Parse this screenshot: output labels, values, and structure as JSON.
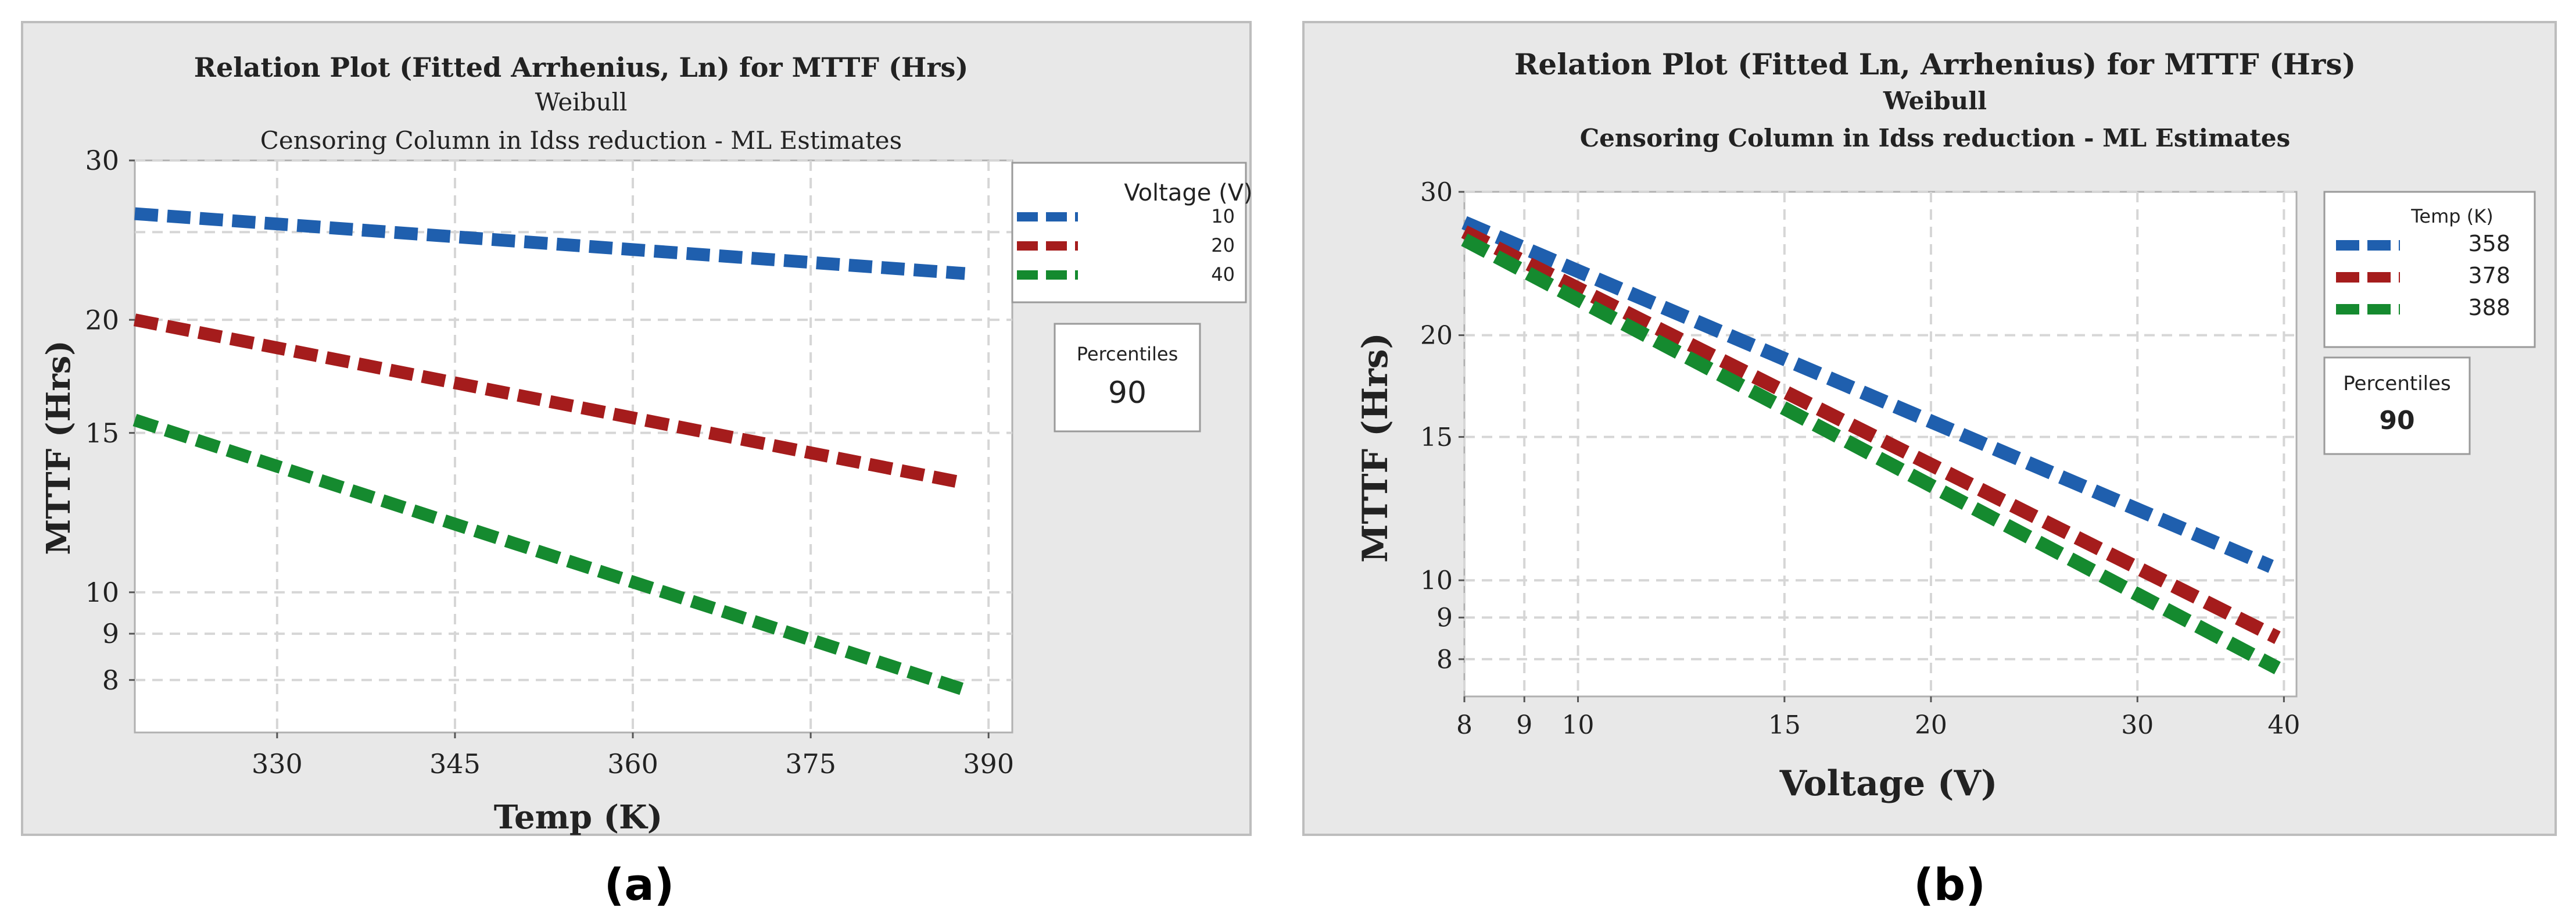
{
  "chart_data": [
    {
      "type": "line",
      "panel_label": "(a)",
      "title": "Relation Plot (Fitted Arrhenius, Ln) for MTTF (Hrs)",
      "subtitle1": "Weibull",
      "subtitle2": "Censoring Column in Idss reduction - ML Estimates",
      "xlabel": "Temp (K)",
      "ylabel": "MTTF (Hrs)",
      "xlim": [
        318,
        392
      ],
      "ylim": [
        7,
        30
      ],
      "yscale": "log",
      "grid": true,
      "xticks": [
        330,
        345,
        360,
        375,
        390
      ],
      "yticks": [
        8,
        9,
        10,
        15,
        20,
        30
      ],
      "legend": {
        "title": "Voltage (V)",
        "placement": "right"
      },
      "percentiles": {
        "label": "Percentiles",
        "value": "90"
      },
      "series": [
        {
          "name": "10",
          "color": "#1f5fae",
          "x": [
            318,
            388
          ],
          "values": [
            26.2,
            22.5
          ]
        },
        {
          "name": "20",
          "color": "#a51c1c",
          "x": [
            318,
            388
          ],
          "values": [
            20.0,
            13.2
          ]
        },
        {
          "name": "40",
          "color": "#158a2f",
          "x": [
            318,
            388
          ],
          "values": [
            15.5,
            7.8
          ]
        }
      ]
    },
    {
      "type": "line",
      "panel_label": "(b)",
      "title": "Relation Plot (Fitted Ln, Arrhenius) for MTTF (Hrs)",
      "subtitle1": "Weibull",
      "subtitle2": "Censoring Column in Idss reduction - ML Estimates",
      "xlabel": "Voltage (V)",
      "ylabel": "MTTF (Hrs)",
      "xlim": [
        8,
        41
      ],
      "ylim": [
        7.2,
        30
      ],
      "xscale": "log",
      "yscale": "log",
      "grid": true,
      "xticks": [
        8,
        9,
        10,
        15,
        20,
        30,
        40
      ],
      "yticks": [
        8,
        9,
        10,
        15,
        20,
        30
      ],
      "legend": {
        "title": "Temp (K)",
        "placement": "right"
      },
      "percentiles": {
        "label": "Percentiles",
        "value": "90"
      },
      "series": [
        {
          "name": "358",
          "color": "#1f5fae",
          "x": [
            8,
            39
          ],
          "values": [
            27.5,
            10.4
          ]
        },
        {
          "name": "378",
          "color": "#a51c1c",
          "x": [
            8,
            39.5
          ],
          "values": [
            26.8,
            8.5
          ]
        },
        {
          "name": "388",
          "color": "#158a2f",
          "x": [
            8,
            39.5
          ],
          "values": [
            26.2,
            7.8
          ]
        }
      ]
    }
  ]
}
